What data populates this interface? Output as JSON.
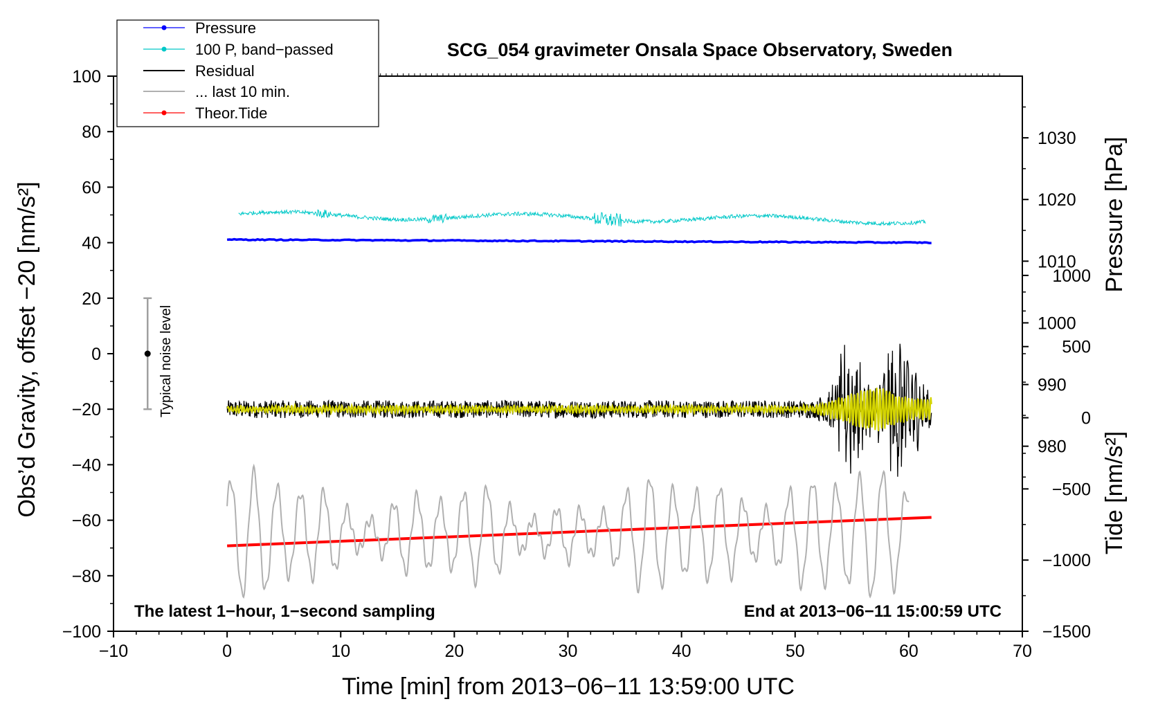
{
  "chart_data": {
    "type": "line",
    "title": "SCG_054 gravimeter Onsala Space Observatory, Sweden",
    "xlabel": "Time [min] from 2013−06−11 13:59:00 UTC",
    "ylabel_left": "Obs’d Gravity, offset −20 [nm/s²]",
    "ylabel_pressure": "Pressure [hPa]",
    "ylabel_tide": "Tide [nm/s²]",
    "xlim": [
      -10,
      70
    ],
    "ylim": [
      -100,
      100
    ],
    "x_ticks": [
      -10,
      0,
      10,
      20,
      30,
      40,
      50,
      60,
      70
    ],
    "x_tick_labels": [
      "−10",
      "0",
      "10",
      "20",
      "30",
      "40",
      "50",
      "60",
      "70"
    ],
    "y_ticks": [
      -100,
      -80,
      -60,
      -40,
      -20,
      0,
      20,
      40,
      60,
      80,
      100
    ],
    "y_tick_labels": [
      "−100",
      "−80",
      "−60",
      "−40",
      "−20",
      "0",
      "20",
      "40",
      "60",
      "80",
      "100"
    ],
    "pressure_axis": {
      "range": [
        950,
        1040
      ],
      "ticks": [
        980,
        990,
        1000,
        1010,
        1020,
        1030
      ],
      "tick_labels": [
        "980",
        "990",
        "1000",
        "1010",
        "1020",
        "1030"
      ]
    },
    "tide_axis": {
      "range": [
        -1500,
        2400
      ],
      "ticks": [
        -1500,
        -1000,
        -500,
        0,
        500,
        1000
      ],
      "tick_labels": [
        "−1500",
        "−1000",
        "−500",
        "0",
        "500",
        "1000"
      ]
    },
    "legend": [
      {
        "label": "Pressure",
        "color": "#0000ff",
        "marker": true
      },
      {
        "label": "100 P, band−passed",
        "color": "#00c8c8",
        "marker": true
      },
      {
        "label": "Residual",
        "color": "#000000",
        "marker": false
      },
      {
        "label": "... last 10 min.",
        "color": "#b0b0b0",
        "marker": false
      },
      {
        "label": "Theor.Tide",
        "color": "#ff0000",
        "marker": true
      }
    ],
    "series": [
      {
        "name": "Pressure",
        "color": "#0000ff",
        "axis": "pressure",
        "x_range": [
          0,
          62
        ],
        "start": 1013.5,
        "end": 1013.0
      },
      {
        "name": "100 P, band-passed",
        "color": "#00c8c8",
        "axis": "left",
        "x_range": [
          1,
          61.5
        ],
        "start": 50,
        "end": 48
      },
      {
        "name": "Residual",
        "color": "#000000",
        "axis": "left",
        "x_range": [
          0,
          62
        ],
        "level": -20
      },
      {
        "name": "Residual, filtered",
        "color": "#d4d400",
        "axis": "left",
        "x_range": [
          0,
          62
        ],
        "level": -20
      },
      {
        "name": "... last 10 min.",
        "color": "#b0b0b0",
        "axis": "left",
        "x_range": [
          0,
          60
        ],
        "level": -65
      },
      {
        "name": "Theor.Tide",
        "color": "#ff0000",
        "axis": "tide",
        "x_range": [
          0,
          62
        ],
        "start": -900,
        "end": -700
      }
    ],
    "noise_bar": {
      "x": -7,
      "center": 0,
      "low": -20,
      "high": 20,
      "label": "Typical noise level"
    },
    "annotation_left": "The latest 1−hour, 1−second sampling",
    "annotation_right": "End at 2013−06−11 15:00:59 UTC"
  },
  "colors": {
    "pressure": "#0000ff",
    "bandpassed": "#00c8c8",
    "residual": "#000000",
    "filtered": "#d4d400",
    "last10": "#b0b0b0",
    "tide": "#ff0000",
    "noise": "#a0a0a0"
  }
}
